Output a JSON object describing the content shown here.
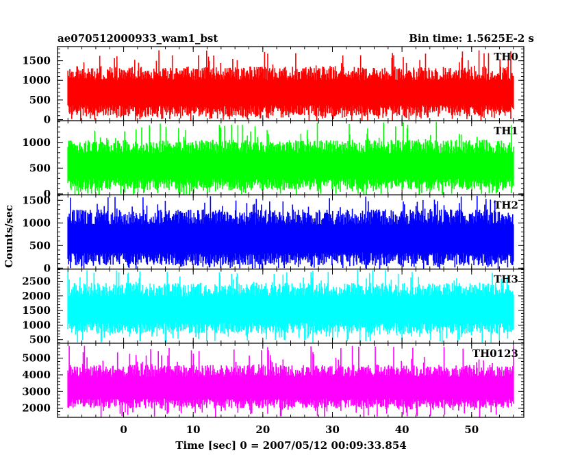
{
  "chart_data": {
    "type": "line",
    "title": "ae070512000933_wam1_bst",
    "subtitle": "Bin time: 1.5625E-2 s",
    "xlabel": "Time [sec] 0 = 2007/05/12 00:09:33.854",
    "ylabel": "Counts/sec",
    "xlim": [
      -9.5,
      57.5
    ],
    "data_range": [
      -8,
      56
    ],
    "x_ticks": [
      "0",
      "10",
      "20",
      "30",
      "40",
      "50"
    ],
    "x_tick_values": [
      0,
      10,
      20,
      30,
      40,
      50
    ],
    "grid": false,
    "panels": [
      {
        "name": "TH0",
        "color": "#ff0000",
        "ylim": [
          -30,
          1860
        ],
        "y_ticks": [
          "0",
          "500",
          "1000",
          "1500"
        ],
        "y_tick_values": [
          0,
          500,
          1000,
          1500
        ],
        "typical_low": 80,
        "typical_high": 1350,
        "peak": 1800
      },
      {
        "name": "TH1",
        "color": "#00ff00",
        "ylim": [
          -20,
          1420
        ],
        "y_ticks": [
          "0",
          "500",
          "1000"
        ],
        "y_tick_values": [
          0,
          500,
          1000
        ],
        "typical_low": 80,
        "typical_high": 1050,
        "peak": 1400
      },
      {
        "name": "TH2",
        "color": "#0000ff",
        "ylim": [
          -20,
          1620
        ],
        "y_ticks": [
          "0",
          "500",
          "1000",
          "1500"
        ],
        "y_tick_values": [
          0,
          500,
          1000,
          1500
        ],
        "typical_low": 60,
        "typical_high": 1300,
        "peak": 1600
      },
      {
        "name": "TH3",
        "color": "#00ffff",
        "ylim": [
          380,
          2920
        ],
        "y_ticks": [
          "500",
          "1000",
          "1500",
          "2000",
          "2500"
        ],
        "y_tick_values": [
          500,
          1000,
          1500,
          2000,
          2500
        ],
        "typical_low": 700,
        "typical_high": 2450,
        "peak": 2900
      },
      {
        "name": "TH0123",
        "color": "#ff00ff",
        "ylim": [
          1450,
          5900
        ],
        "y_ticks": [
          "2000",
          "3000",
          "4000",
          "5000"
        ],
        "y_tick_values": [
          2000,
          3000,
          4000,
          5000
        ],
        "typical_low": 2000,
        "typical_high": 4600,
        "peak": 5800
      }
    ]
  }
}
